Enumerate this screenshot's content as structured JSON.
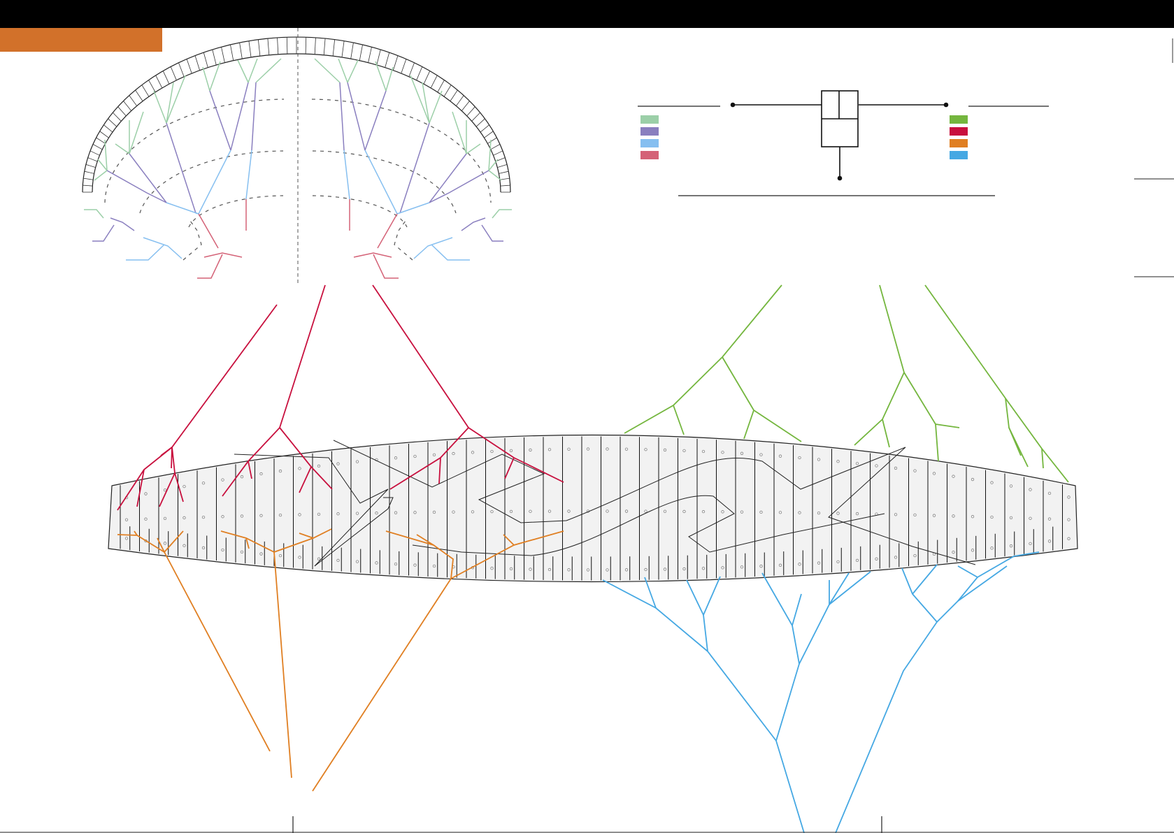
{
  "colors": {
    "header_bar": "#000000",
    "orange_tab": "#d2712a",
    "canopy_fill": "#f2f2f2",
    "outline": "#222222",
    "rib_line": "#111111",
    "lines": {
      "top_a": "#9ccfa8",
      "top_b": "#8a7fbf",
      "top_c": "#86bff0",
      "top_d": "#d46277",
      "main_upper_right": "#74b63e",
      "main_upper_left": "#c8103e",
      "main_lower_left": "#e07f22",
      "main_lower_right": "#45a8e3"
    }
  },
  "legend_left": {
    "swatches": [
      {
        "color": "#9ccfa8"
      },
      {
        "color": "#8a7fbf"
      },
      {
        "color": "#86bff0"
      },
      {
        "color": "#d46277"
      }
    ]
  },
  "legend_right": {
    "swatches": [
      {
        "color": "#74b63e"
      },
      {
        "color": "#c8103e"
      },
      {
        "color": "#e07f22"
      },
      {
        "color": "#45a8e3"
      }
    ]
  },
  "icons": {
    "header": "black-header-bar",
    "tab": "orange-title-tab",
    "harness": "riser-connector-icon"
  }
}
